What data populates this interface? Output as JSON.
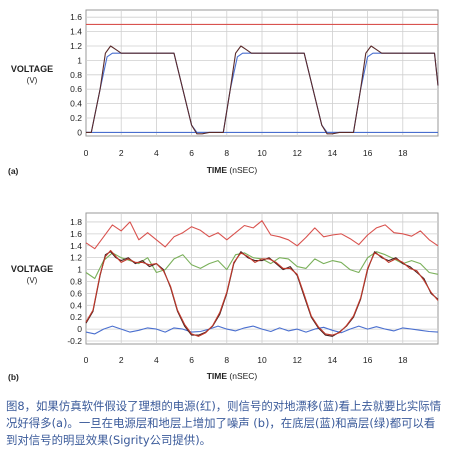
{
  "chart_data": [
    {
      "type": "line",
      "panel_label": "(a)",
      "ylabel": "VOLTAGE",
      "ylabel_unit": "(V)",
      "xlabel": "TIME",
      "xlabel_unit": "(nSEC)",
      "xlim": [
        0,
        20
      ],
      "ylim": [
        -0.05,
        1.7
      ],
      "x_ticks": [
        0,
        2,
        4,
        6,
        8,
        10,
        12,
        14,
        16,
        18
      ],
      "y_ticks": [
        0,
        0.2,
        0.4,
        0.6,
        0.8,
        1.0,
        1.2,
        1.4,
        1.6
      ],
      "y_tick_labels": [
        "0",
        "0.2",
        "0.4",
        "0.6",
        "0.8",
        "1",
        "1.2",
        "1.4",
        "1.6"
      ],
      "grid": true,
      "series": [
        {
          "color": "#d9534f",
          "x": [
            0,
            20
          ],
          "y": [
            1.5,
            1.5
          ]
        },
        {
          "color": "#4a6fcf",
          "x": [
            0,
            20
          ],
          "y": [
            0,
            0
          ]
        },
        {
          "color": "#4a6fcf",
          "x": [
            0,
            0.3,
            0.8,
            1.2,
            1.5,
            1.8,
            2.2,
            2.6,
            5.0,
            5.5,
            6.0,
            6.3,
            6.6,
            7.0,
            7.3,
            7.8,
            8.2,
            8.6,
            8.9,
            9.2,
            9.6,
            10.0,
            12.4,
            12.9,
            13.4,
            13.7,
            14.0,
            14.4,
            14.7,
            15.2,
            15.6,
            16.0,
            16.3,
            16.6,
            17.0,
            17.4,
            19.8,
            20
          ],
          "y": [
            0,
            0,
            0.6,
            1.05,
            1.1,
            1.1,
            1.1,
            1.1,
            1.1,
            0.6,
            0.1,
            0.0,
            0.0,
            0.0,
            0.0,
            0.0,
            0.6,
            1.05,
            1.1,
            1.1,
            1.1,
            1.1,
            1.1,
            0.6,
            0.1,
            0.0,
            0.0,
            0.0,
            0.0,
            0.0,
            0.6,
            1.05,
            1.1,
            1.1,
            1.1,
            1.1,
            1.1,
            0.65
          ]
        },
        {
          "color": "#5a2a2a",
          "x": [
            0,
            0.3,
            0.8,
            1.1,
            1.4,
            1.7,
            2.0,
            2.4,
            5.0,
            5.5,
            6.0,
            6.3,
            6.6,
            7.0,
            7.3,
            7.8,
            8.2,
            8.5,
            8.8,
            9.1,
            9.4,
            9.8,
            12.4,
            12.9,
            13.4,
            13.7,
            14.0,
            14.4,
            14.7,
            15.2,
            15.6,
            15.9,
            16.2,
            16.5,
            16.8,
            17.2,
            19.8,
            20
          ],
          "y": [
            0,
            0,
            0.6,
            1.1,
            1.2,
            1.15,
            1.1,
            1.1,
            1.1,
            0.6,
            0.1,
            -0.02,
            -0.02,
            0.0,
            0.0,
            0.0,
            0.6,
            1.1,
            1.2,
            1.15,
            1.1,
            1.1,
            1.1,
            0.6,
            0.1,
            -0.02,
            -0.02,
            0.0,
            0.0,
            0.0,
            0.6,
            1.1,
            1.2,
            1.15,
            1.1,
            1.1,
            1.1,
            0.65
          ]
        }
      ]
    },
    {
      "type": "line",
      "panel_label": "(b)",
      "ylabel": "VOLTAGE",
      "ylabel_unit": "(V)",
      "xlabel": "TIME",
      "xlabel_unit": "(nSEC)",
      "xlim": [
        0,
        20
      ],
      "ylim": [
        -0.25,
        1.95
      ],
      "x_ticks": [
        0,
        2,
        4,
        6,
        8,
        10,
        12,
        14,
        16,
        18
      ],
      "y_ticks": [
        -0.2,
        0,
        0.2,
        0.4,
        0.6,
        0.8,
        1.0,
        1.2,
        1.4,
        1.6,
        1.8
      ],
      "y_tick_labels": [
        "-0.2",
        "0",
        "0.2",
        "0.4",
        "0.6",
        "0.8",
        "1",
        "1.2",
        "1.4",
        "1.6",
        "1.8"
      ],
      "grid": true,
      "series": [
        {
          "color": "#d9534f",
          "x": [
            0,
            0.5,
            1.0,
            1.5,
            2.0,
            2.5,
            3.0,
            3.5,
            4.0,
            4.5,
            5.0,
            5.5,
            6.0,
            6.5,
            7.0,
            7.5,
            8.0,
            8.5,
            9.0,
            9.5,
            10.0,
            10.5,
            11.0,
            11.5,
            12.0,
            12.5,
            13.0,
            13.5,
            14.0,
            14.5,
            15.0,
            15.5,
            16.0,
            16.5,
            17.0,
            17.5,
            18.0,
            18.5,
            19.0,
            19.5,
            20.0
          ],
          "y": [
            1.45,
            1.35,
            1.55,
            1.75,
            1.65,
            1.8,
            1.5,
            1.62,
            1.5,
            1.38,
            1.55,
            1.62,
            1.72,
            1.66,
            1.55,
            1.62,
            1.5,
            1.62,
            1.74,
            1.7,
            1.82,
            1.58,
            1.55,
            1.5,
            1.4,
            1.54,
            1.7,
            1.55,
            1.58,
            1.6,
            1.52,
            1.42,
            1.58,
            1.7,
            1.75,
            1.62,
            1.6,
            1.56,
            1.65,
            1.5,
            1.4
          ]
        },
        {
          "color": "#7ab05a",
          "x": [
            0,
            0.5,
            1.0,
            1.5,
            2.0,
            2.5,
            3.0,
            3.5,
            4.0,
            4.5,
            5.0,
            5.5,
            6.0,
            6.5,
            7.0,
            7.5,
            8.0,
            8.5,
            9.0,
            9.5,
            10.0,
            10.5,
            11.0,
            11.5,
            12.0,
            12.5,
            13.0,
            13.5,
            14.0,
            14.5,
            15.0,
            15.5,
            16.0,
            16.5,
            17.0,
            17.5,
            18.0,
            18.5,
            19.0,
            19.5,
            20.0
          ],
          "y": [
            0.95,
            0.85,
            1.15,
            1.28,
            1.2,
            1.15,
            1.1,
            1.2,
            0.95,
            1.0,
            1.18,
            1.25,
            1.08,
            1.02,
            1.1,
            1.15,
            1.0,
            1.25,
            1.28,
            1.2,
            1.18,
            1.1,
            1.2,
            1.18,
            1.05,
            1.02,
            1.18,
            1.1,
            1.15,
            1.12,
            1.0,
            0.95,
            1.2,
            1.3,
            1.25,
            1.18,
            1.1,
            1.15,
            1.1,
            0.95,
            0.92
          ]
        },
        {
          "color": "#4a6fcf",
          "x": [
            0,
            0.5,
            1.0,
            1.5,
            2.0,
            2.5,
            3.0,
            3.5,
            4.0,
            4.5,
            5.0,
            5.5,
            6.0,
            6.5,
            7.0,
            7.5,
            8.0,
            8.5,
            9.0,
            9.5,
            10.0,
            10.5,
            11.0,
            11.5,
            12.0,
            12.5,
            13.0,
            13.5,
            14.0,
            14.5,
            15.0,
            15.5,
            16.0,
            16.5,
            17.0,
            17.5,
            18.0,
            18.5,
            19.0,
            19.5,
            20.0
          ],
          "y": [
            -0.05,
            -0.08,
            0.0,
            0.05,
            0.0,
            -0.05,
            -0.02,
            0.02,
            0.0,
            -0.05,
            0.02,
            0.0,
            -0.05,
            -0.04,
            0.0,
            0.05,
            0.0,
            -0.03,
            0.02,
            0.05,
            0.0,
            -0.04,
            0.02,
            -0.03,
            0.0,
            -0.05,
            0.0,
            0.03,
            -0.02,
            -0.06,
            0.0,
            0.05,
            0.0,
            0.04,
            0.0,
            -0.03,
            0.02,
            0.0,
            -0.02,
            -0.04,
            -0.05
          ]
        },
        {
          "color": "#4a2222",
          "x": [
            0,
            0.4,
            0.8,
            1.1,
            1.4,
            1.7,
            2.0,
            2.4,
            2.8,
            3.2,
            3.6,
            4.0,
            4.4,
            4.8,
            5.2,
            5.6,
            6.0,
            6.4,
            6.8,
            7.2,
            7.6,
            8.0,
            8.4,
            8.8,
            9.2,
            9.6,
            10.0,
            10.4,
            10.8,
            11.2,
            11.6,
            12.0,
            12.4,
            12.8,
            13.2,
            13.6,
            14.0,
            14.4,
            14.8,
            15.2,
            15.6,
            16.0,
            16.4,
            16.8,
            17.2,
            17.6,
            18.0,
            18.4,
            18.8,
            19.2,
            19.6,
            20.0
          ],
          "y": [
            0.1,
            0.3,
            0.9,
            1.25,
            1.3,
            1.2,
            1.15,
            1.2,
            1.1,
            1.15,
            1.05,
            1.1,
            1.0,
            0.7,
            0.3,
            0.05,
            -0.1,
            -0.1,
            -0.05,
            0.05,
            0.25,
            0.6,
            1.1,
            1.3,
            1.2,
            1.15,
            1.15,
            1.2,
            1.1,
            1.0,
            1.05,
            0.9,
            0.55,
            0.2,
            0.02,
            -0.1,
            -0.12,
            -0.05,
            0.05,
            0.2,
            0.5,
            1.0,
            1.3,
            1.2,
            1.15,
            1.2,
            1.1,
            1.05,
            0.95,
            0.85,
            0.6,
            0.5
          ]
        },
        {
          "color": "#c0392b",
          "x": [
            0,
            0.4,
            0.8,
            1.1,
            1.4,
            1.7,
            2.0,
            2.4,
            2.8,
            3.2,
            3.6,
            4.0,
            4.4,
            4.8,
            5.2,
            5.6,
            6.0,
            6.4,
            6.8,
            7.2,
            7.6,
            8.0,
            8.4,
            8.8,
            9.2,
            9.6,
            10.0,
            10.4,
            10.8,
            11.2,
            11.6,
            12.0,
            12.4,
            12.8,
            13.2,
            13.6,
            14.0,
            14.4,
            14.8,
            15.2,
            15.6,
            16.0,
            16.4,
            16.8,
            17.2,
            17.6,
            18.0,
            18.4,
            18.8,
            19.2,
            19.6,
            20.0
          ],
          "y": [
            0.12,
            0.32,
            0.92,
            1.22,
            1.32,
            1.22,
            1.12,
            1.18,
            1.12,
            1.12,
            1.08,
            1.1,
            0.98,
            0.72,
            0.32,
            0.08,
            -0.08,
            -0.12,
            -0.06,
            0.06,
            0.28,
            0.62,
            1.12,
            1.28,
            1.22,
            1.12,
            1.18,
            1.18,
            1.12,
            1.02,
            1.02,
            0.92,
            0.58,
            0.22,
            0.04,
            -0.08,
            -0.1,
            -0.06,
            0.06,
            0.22,
            0.52,
            1.02,
            1.28,
            1.22,
            1.12,
            1.18,
            1.12,
            1.02,
            0.98,
            0.82,
            0.62,
            0.48
          ]
        }
      ]
    }
  ],
  "caption": "图8，如果仿真软件假设了理想的电源(红)，则信号的对地漂移(蓝)看上去就要比实际情况好得多(a)。一旦在电源层和地层上增加了噪声 (b)，在底层(蓝)和高层(绿)都可以看到对信号的明显效果(Sigrity公司提供)。"
}
